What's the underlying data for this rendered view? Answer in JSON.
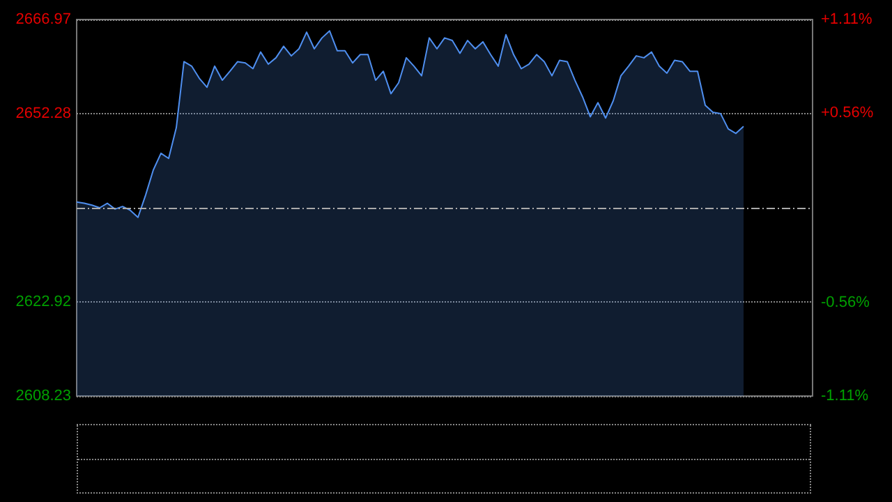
{
  "chart_data": {
    "type": "area",
    "color": "#4f8ff0",
    "categories": [
      null,
      null,
      null,
      null,
      null,
      null,
      null,
      null,
      null,
      null,
      null,
      null,
      null,
      null,
      null,
      null,
      null,
      null,
      null,
      null,
      null,
      null,
      null,
      null,
      null,
      null,
      null,
      null,
      null,
      null,
      null,
      null,
      null,
      null,
      null,
      null,
      null,
      null,
      null,
      null,
      null,
      null,
      null,
      null,
      null,
      null,
      null,
      null,
      null,
      null,
      null,
      null,
      null,
      null,
      null,
      null,
      null,
      null,
      null,
      null,
      null,
      null,
      null,
      null,
      null,
      null,
      null,
      null,
      null,
      null,
      null,
      null,
      null,
      null,
      null,
      null,
      null,
      null,
      null,
      null,
      null,
      null,
      null,
      null,
      null,
      null,
      null,
      null,
      null,
      null,
      null,
      null,
      null,
      null,
      null,
      null,
      null
    ],
    "values": [
      2638.5,
      2638.3,
      2638.0,
      2637.6,
      2638.3,
      2637.4,
      2637.8,
      2637.2,
      2636.1,
      2639.6,
      2643.5,
      2646.1,
      2645.3,
      2650.1,
      2660.4,
      2659.7,
      2657.8,
      2656.4,
      2659.7,
      2657.5,
      2658.9,
      2660.4,
      2660.2,
      2659.3,
      2661.9,
      2660.0,
      2661.0,
      2662.8,
      2661.3,
      2662.4,
      2665.0,
      2662.4,
      2664.1,
      2665.2,
      2662.1,
      2662.1,
      2660.2,
      2661.5,
      2661.5,
      2657.5,
      2658.9,
      2655.4,
      2657.1,
      2661.0,
      2659.7,
      2658.2,
      2664.1,
      2662.4,
      2664.1,
      2663.7,
      2661.7,
      2663.7,
      2662.4,
      2663.5,
      2661.5,
      2659.7,
      2664.6,
      2661.5,
      2659.3,
      2660.0,
      2661.5,
      2660.4,
      2658.2,
      2660.6,
      2660.4,
      2657.5,
      2654.9,
      2651.8,
      2654.0,
      2651.6,
      2654.3,
      2658.2,
      2659.7,
      2661.3,
      2661.0,
      2661.9,
      2659.7,
      2658.6,
      2660.6,
      2660.4,
      2658.9,
      2658.9,
      2653.6,
      2652.5,
      2652.3,
      2649.9,
      2649.2,
      2650.3,
      null,
      null,
      null,
      null,
      null,
      null,
      null,
      null,
      null
    ],
    "ylim": [
      2608.23,
      2666.97
    ],
    "yticks": [
      2608.23,
      2622.92,
      2652.28,
      2666.97
    ],
    "y2lim": [
      -1.11,
      1.11
    ],
    "y2ticks": [
      {
        "value": -1.11,
        "label": "-1.11%"
      },
      {
        "value": -0.56,
        "label": "-0.56%"
      },
      {
        "value": 0.56,
        "label": "+0.56%"
      },
      {
        "value": 1.11,
        "label": "+1.11%"
      }
    ],
    "ref_lines": [
      {
        "axis": "y",
        "value": 2637.6,
        "line_style": "dashed",
        "color": "#aaaaaa"
      }
    ],
    "grid": "y",
    "tick_labels": "y"
  }
}
